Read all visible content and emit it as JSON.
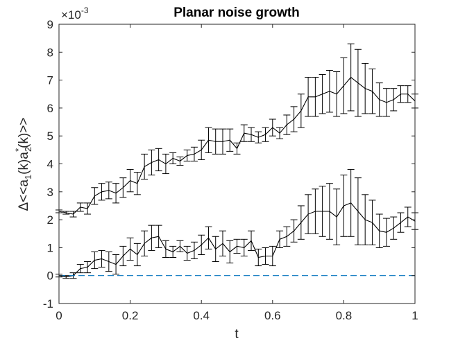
{
  "chart_data": {
    "type": "line",
    "title": "Planar noise growth",
    "xlabel": "t",
    "ylabel": "Δ<<a1(k)a2*(k)>>",
    "ylabel_parts": {
      "base": "Δ<<a",
      "sub1": "1",
      "mid": "(k)a",
      "sub2": "2",
      "sup2": "*",
      "end": "(k)>>"
    },
    "y_multiplier": {
      "base": "×10",
      "exponent": "-3"
    },
    "xlim": [
      0,
      1
    ],
    "ylim": [
      -1,
      9
    ],
    "xticks": [
      0,
      0.2,
      0.4,
      0.6,
      0.8,
      1
    ],
    "xtick_labels": [
      "0",
      "0.2",
      "0.4",
      "0.6",
      "0.8",
      "1"
    ],
    "yticks": [
      -1,
      0,
      1,
      2,
      3,
      4,
      5,
      6,
      7,
      8,
      9
    ],
    "ytick_labels": [
      "-1",
      "0",
      "1",
      "2",
      "3",
      "4",
      "5",
      "6",
      "7",
      "8",
      "9"
    ],
    "grid": false,
    "box": true,
    "series": [
      {
        "style": "solid-errorbar",
        "color": "#000000",
        "x": [
          0,
          0.02,
          0.04,
          0.06,
          0.08,
          0.1,
          0.12,
          0.14,
          0.16,
          0.18,
          0.2,
          0.22,
          0.24,
          0.26,
          0.28,
          0.3,
          0.32,
          0.34,
          0.36,
          0.38,
          0.4,
          0.42,
          0.44,
          0.46,
          0.48,
          0.5,
          0.52,
          0.54,
          0.56,
          0.58,
          0.6,
          0.62,
          0.64,
          0.66,
          0.68,
          0.7,
          0.72,
          0.74,
          0.76,
          0.78,
          0.8,
          0.82,
          0.84,
          0.86,
          0.88,
          0.9,
          0.92,
          0.94,
          0.96,
          0.98,
          1.0
        ],
        "y": [
          2.3,
          2.25,
          2.2,
          2.45,
          2.4,
          2.85,
          3.0,
          3.05,
          2.95,
          3.15,
          3.4,
          3.3,
          3.9,
          4.05,
          4.15,
          4.0,
          4.2,
          4.1,
          4.3,
          4.35,
          4.5,
          4.85,
          4.8,
          4.8,
          4.85,
          4.55,
          5.1,
          5.05,
          4.95,
          5.05,
          5.3,
          5.1,
          5.4,
          5.6,
          5.9,
          6.4,
          6.4,
          6.5,
          6.6,
          6.5,
          6.8,
          7.1,
          6.9,
          6.7,
          6.6,
          6.3,
          6.2,
          6.3,
          6.5,
          6.5,
          6.25
        ],
        "err": [
          0.05,
          0.05,
          0.1,
          0.15,
          0.2,
          0.3,
          0.3,
          0.3,
          0.35,
          0.35,
          0.4,
          0.4,
          0.45,
          0.45,
          0.4,
          0.35,
          0.2,
          0.15,
          0.2,
          0.25,
          0.35,
          0.45,
          0.45,
          0.45,
          0.4,
          0.2,
          0.3,
          0.25,
          0.2,
          0.25,
          0.3,
          0.2,
          0.35,
          0.45,
          0.6,
          0.7,
          0.7,
          0.7,
          0.75,
          0.8,
          1.0,
          1.2,
          1.2,
          0.9,
          0.8,
          0.6,
          0.5,
          0.4,
          0.3,
          0.3,
          0.25
        ]
      },
      {
        "style": "solid-errorbar",
        "color": "#000000",
        "x": [
          0,
          0.02,
          0.04,
          0.06,
          0.08,
          0.1,
          0.12,
          0.14,
          0.16,
          0.18,
          0.2,
          0.22,
          0.24,
          0.26,
          0.28,
          0.3,
          0.32,
          0.34,
          0.36,
          0.38,
          0.4,
          0.42,
          0.44,
          0.46,
          0.48,
          0.5,
          0.52,
          0.54,
          0.56,
          0.58,
          0.6,
          0.62,
          0.64,
          0.66,
          0.68,
          0.7,
          0.72,
          0.74,
          0.76,
          0.78,
          0.8,
          0.82,
          0.84,
          0.86,
          0.88,
          0.9,
          0.92,
          0.94,
          0.96,
          0.98,
          1.0
        ],
        "y": [
          0.0,
          -0.05,
          0.0,
          0.25,
          0.3,
          0.55,
          0.6,
          0.5,
          0.4,
          0.7,
          0.95,
          0.75,
          1.15,
          1.35,
          1.4,
          0.95,
          0.85,
          1.05,
          0.8,
          0.9,
          1.1,
          1.35,
          0.95,
          1.15,
          0.85,
          1.05,
          1.0,
          1.25,
          0.65,
          0.7,
          0.7,
          1.3,
          1.4,
          1.6,
          1.9,
          2.2,
          2.3,
          2.3,
          2.3,
          2.1,
          2.5,
          2.6,
          2.3,
          2.0,
          1.9,
          1.6,
          1.55,
          1.7,
          1.9,
          2.1,
          1.95
        ],
        "err": [
          0.05,
          0.05,
          0.1,
          0.15,
          0.2,
          0.3,
          0.3,
          0.35,
          0.35,
          0.35,
          0.4,
          0.4,
          0.45,
          0.45,
          0.4,
          0.3,
          0.2,
          0.2,
          0.25,
          0.3,
          0.35,
          0.4,
          0.45,
          0.45,
          0.4,
          0.25,
          0.3,
          0.35,
          0.3,
          0.3,
          0.35,
          0.3,
          0.35,
          0.4,
          0.6,
          0.7,
          0.8,
          0.9,
          1.0,
          1.0,
          1.1,
          1.2,
          1.2,
          0.9,
          0.8,
          0.6,
          0.5,
          0.4,
          0.35,
          0.35,
          0.3
        ]
      },
      {
        "style": "dashed",
        "color": "#0072BD",
        "x": [
          0,
          1
        ],
        "y": [
          0,
          0
        ]
      }
    ]
  }
}
